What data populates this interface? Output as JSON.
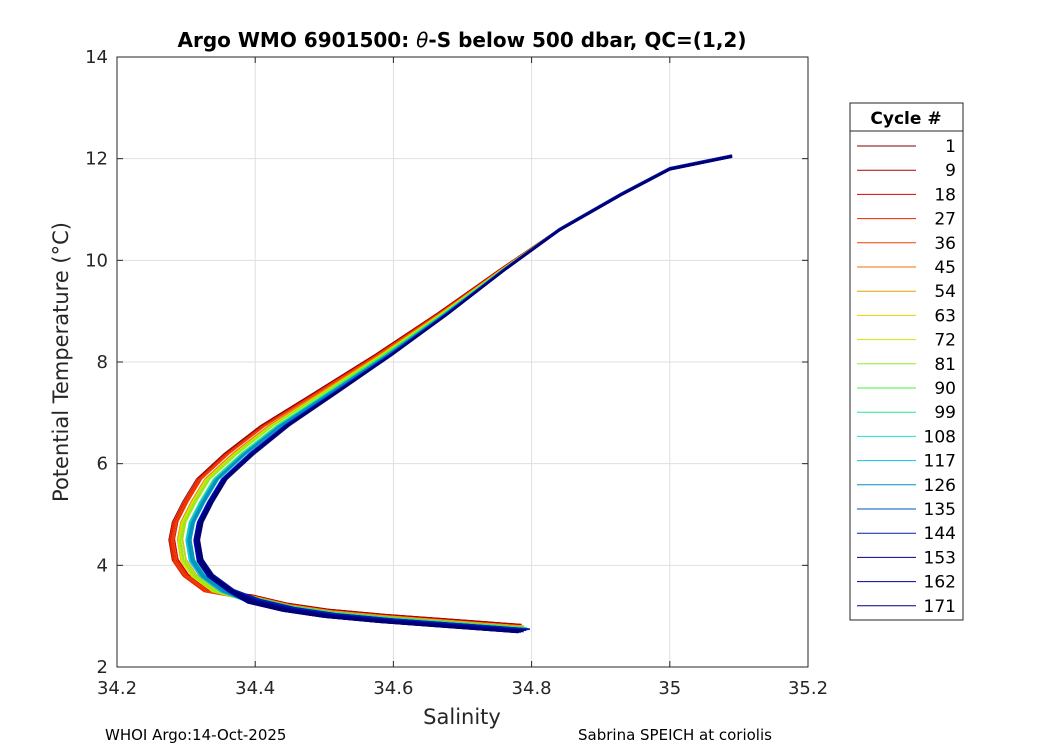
{
  "chart_data": {
    "type": "line",
    "title_prefix": "Argo WMO 6901500: ",
    "title_symbol": "θ",
    "title_suffix": "-S below 500 dbar,  QC=(1,2)",
    "xlabel": "Salinity",
    "ylabel": "Potential Temperature (°C)",
    "xlim": [
      34.2,
      35.2
    ],
    "ylim": [
      2,
      14
    ],
    "xticks": [
      "34.2",
      "34.4",
      "34.6",
      "34.8",
      "35",
      "35.2"
    ],
    "yticks": [
      "2",
      "4",
      "6",
      "8",
      "10",
      "12",
      "14"
    ],
    "grid": true,
    "legend": {
      "title": "Cycle #",
      "placement": "outside-right",
      "entries": [
        {
          "label": "1",
          "color": "#800000"
        },
        {
          "label": "9",
          "color": "#b00000"
        },
        {
          "label": "18",
          "color": "#dd0000"
        },
        {
          "label": "27",
          "color": "#ee2200"
        },
        {
          "label": "36",
          "color": "#f04000"
        },
        {
          "label": "45",
          "color": "#f27000"
        },
        {
          "label": "54",
          "color": "#e8a000"
        },
        {
          "label": "63",
          "color": "#e8d000"
        },
        {
          "label": "72",
          "color": "#d0e800"
        },
        {
          "label": "81",
          "color": "#90ee20"
        },
        {
          "label": "90",
          "color": "#40f040"
        },
        {
          "label": "99",
          "color": "#20e890"
        },
        {
          "label": "108",
          "color": "#20e0d0"
        },
        {
          "label": "117",
          "color": "#10c0e0"
        },
        {
          "label": "126",
          "color": "#0090c0"
        },
        {
          "label": "135",
          "color": "#0050c0"
        },
        {
          "label": "144",
          "color": "#0020b0"
        },
        {
          "label": "153",
          "color": "#000090"
        },
        {
          "label": "162",
          "color": "#0000a8"
        },
        {
          "label": "171",
          "color": "#000070"
        }
      ]
    },
    "series_base": [
      [
        34.8,
        2.7
      ],
      [
        34.75,
        2.75
      ],
      [
        34.68,
        2.82
      ],
      [
        34.6,
        2.9
      ],
      [
        34.52,
        3.0
      ],
      [
        34.46,
        3.12
      ],
      [
        34.41,
        3.28
      ],
      [
        34.37,
        3.5
      ],
      [
        34.34,
        3.8
      ],
      [
        34.325,
        4.1
      ],
      [
        34.32,
        4.5
      ],
      [
        34.325,
        4.85
      ],
      [
        34.34,
        5.25
      ],
      [
        34.36,
        5.7
      ],
      [
        34.4,
        6.2
      ],
      [
        34.45,
        6.75
      ],
      [
        34.52,
        7.4
      ],
      [
        34.6,
        8.15
      ],
      [
        34.68,
        8.95
      ],
      [
        34.76,
        9.8
      ],
      [
        34.84,
        10.6
      ],
      [
        34.93,
        11.3
      ],
      [
        35.0,
        11.8
      ],
      [
        35.09,
        12.05
      ]
    ]
  },
  "footer": {
    "left": "WHOI Argo:14-Oct-2025",
    "right": "Sabrina SPEICH at coriolis"
  }
}
